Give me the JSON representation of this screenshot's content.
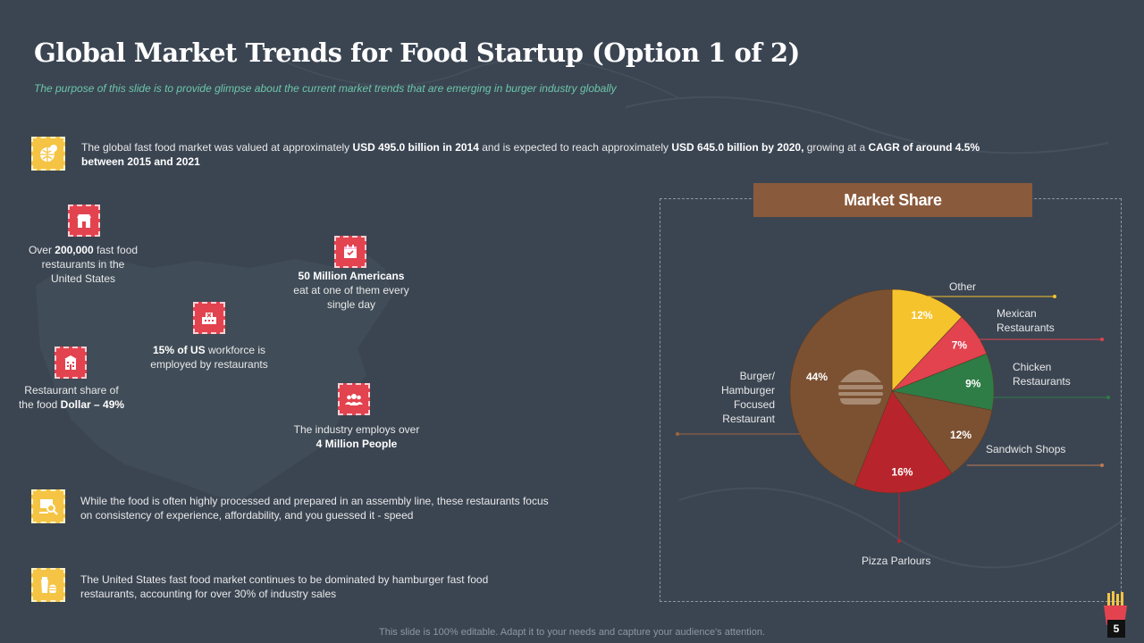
{
  "title": "Global Market Trends for Food Startup (Option 1 of 2)",
  "subtitle": "The purpose of this slide is to provide glimpse about the current market trends that are emerging in burger industry globally",
  "intro": {
    "t1": "The global fast food market was valued  at approximately ",
    "b1": "USD 495.0 billion in 2014",
    "t2": " and is expected to reach approximately ",
    "b2": "USD 645.0 billion by 2020,",
    "t3": " growing at a ",
    "b3": "CAGR of around 4.5%  between 2015 and 2021"
  },
  "stats": {
    "restaurants": {
      "t1": "Over ",
      "b1": "200,000",
      "t2": " fast food restaurants in the United States"
    },
    "americans": {
      "b1": "50 Million Americans",
      "t1": " eat at one of them every single day"
    },
    "workforce": {
      "b1": "15%  of US",
      "t1": " workforce is employed by restaurants"
    },
    "share": {
      "t1": "Restaurant share of the food ",
      "b1": "Dollar – 49%"
    },
    "employs": {
      "t1": "The industry employs over ",
      "b1": "4 Million People"
    }
  },
  "points": [
    "While the food is often highly processed and prepared  in an assembly line, these restaurants focus on consistency of experience, affordability,  and you guessed it - speed",
    "The United States fast food market continues to be dominated by hamburger fast food restaurants, accounting for over 30% of industry sales"
  ],
  "market_share_title": "Market Share",
  "chart_data": {
    "type": "pie",
    "title": "Market Share",
    "slices": [
      {
        "label": "Other",
        "value": 12,
        "pct": "12%",
        "color": "#f5c32c"
      },
      {
        "label": "Mexican Restaurants",
        "value": 7,
        "pct": "7%",
        "color": "#e2434f"
      },
      {
        "label": "Chicken Restaurants",
        "value": 9,
        "pct": "9%",
        "color": "#2e7d46"
      },
      {
        "label": "Sandwich Shops",
        "value": 12,
        "pct": "12%",
        "color": "#7b5132"
      },
      {
        "label": "Pizza Parlours",
        "value": 16,
        "pct": "16%",
        "color": "#b8242c"
      },
      {
        "label": "Burger/ Hamburger Focused Restaurant",
        "value": 44,
        "pct": "44%",
        "color": "#7b5132"
      }
    ]
  },
  "labels": {
    "other": "Other",
    "mexican_1": "Mexican",
    "mexican_2": "Restaurants",
    "chicken_1": "Chicken",
    "chicken_2": "Restaurants",
    "sandwich": "Sandwich Shops",
    "pizza": "Pizza Parlours",
    "burger_1": "Burger/",
    "burger_2": "Hamburger",
    "burger_3": "Focused",
    "burger_4": "Restaurant"
  },
  "footer": "This slide is 100% editable. Adapt it to your needs and capture your audience's attention.",
  "page_number": "5"
}
